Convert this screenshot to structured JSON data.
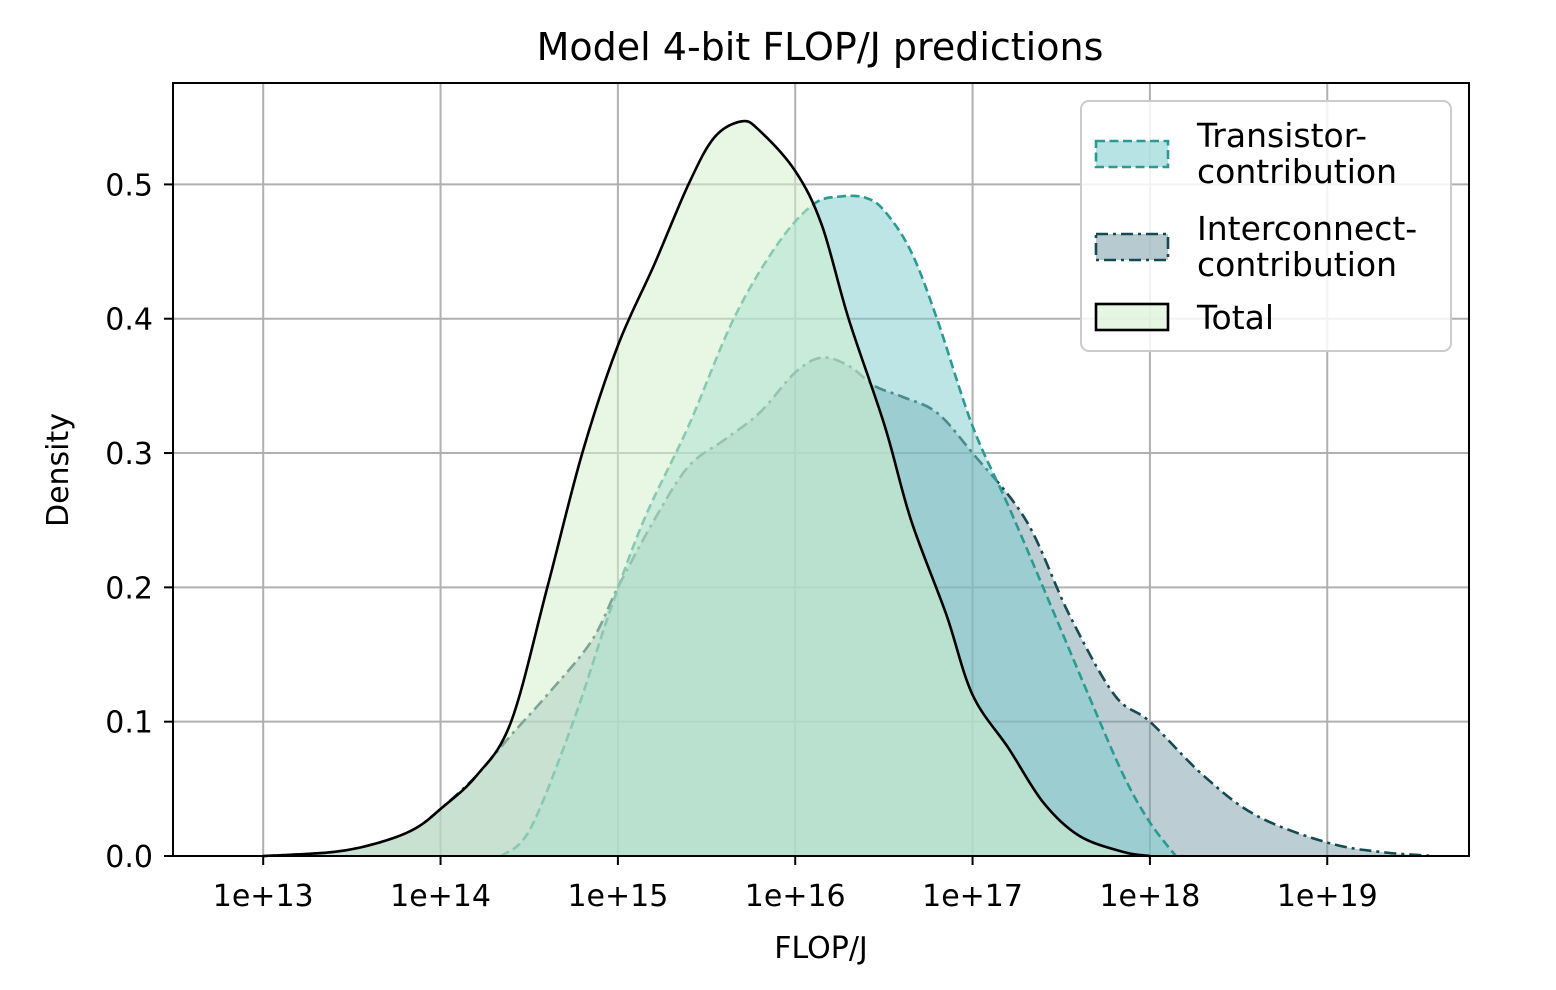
{
  "chart_data": {
    "type": "area",
    "title": "Model 4-bit FLOP/J predictions",
    "xlabel": "FLOP/J",
    "ylabel": "Density",
    "x_scale": "log10",
    "xlim": [
      3100000000000.0,
      6.3e+19
    ],
    "ylim": [
      0,
      0.5755
    ],
    "x_ticks": [
      10000000000000.0,
      100000000000000.0,
      1000000000000000.0,
      1e+16,
      1e+17,
      1e+18,
      1e+19
    ],
    "x_tick_labels": [
      "1e+13",
      "1e+14",
      "1e+15",
      "1e+16",
      "1e+17",
      "1e+18",
      "1e+19"
    ],
    "y_ticks": [
      0.0,
      0.1,
      0.2,
      0.3,
      0.4,
      0.5
    ],
    "y_tick_labels": [
      "0.0",
      "0.1",
      "0.2",
      "0.3",
      "0.4",
      "0.5"
    ],
    "grid": true,
    "legend_position": "top-right",
    "series": [
      {
        "name": "Transistor-\ncontribution",
        "line_style": "dashed",
        "line_color": "#2a9a92",
        "fill_color": "#7ccccd",
        "fill_opacity": 0.5,
        "points": [
          [
            220000000000000.0,
            0.0
          ],
          [
            320000000000000.0,
            0.02
          ],
          [
            560000000000000.0,
            0.1
          ],
          [
            890000000000000.0,
            0.18
          ],
          [
            1400000000000000.0,
            0.25
          ],
          [
            2500000000000000.0,
            0.32
          ],
          [
            4500000000000000.0,
            0.4
          ],
          [
            7900000000000000.0,
            0.455
          ],
          [
            1.26e+16,
            0.485
          ],
          [
            1.8e+16,
            0.491
          ],
          [
            2.5e+16,
            0.49
          ],
          [
            3.2e+16,
            0.48
          ],
          [
            4.5e+16,
            0.45
          ],
          [
            6.3e+16,
            0.4
          ],
          [
            1e+17,
            0.32
          ],
          [
            1.6e+17,
            0.26
          ],
          [
            2.5e+17,
            0.2
          ],
          [
            4.5e+17,
            0.12
          ],
          [
            7.1e+17,
            0.06
          ],
          [
            1e+18,
            0.025
          ],
          [
            1.4e+18,
            0.0
          ]
        ]
      },
      {
        "name": "Interconnect-\ncontribution",
        "line_style": "dashdot",
        "line_color": "#164a52",
        "fill_color": "#7a9ea8",
        "fill_opacity": 0.5,
        "points": [
          [
            10000000000000.0,
            0.0
          ],
          [
            25000000000000.0,
            0.003
          ],
          [
            45000000000000.0,
            0.01
          ],
          [
            71000000000000.0,
            0.02
          ],
          [
            100000000000000.0,
            0.035
          ],
          [
            160000000000000.0,
            0.06
          ],
          [
            250000000000000.0,
            0.09
          ],
          [
            400000000000000.0,
            0.12
          ],
          [
            710000000000000.0,
            0.16
          ],
          [
            1000000000000000.0,
            0.2
          ],
          [
            1600000000000000.0,
            0.25
          ],
          [
            2500000000000000.0,
            0.29
          ],
          [
            4000000000000000.0,
            0.31
          ],
          [
            6300000000000000.0,
            0.33
          ],
          [
            1e+16,
            0.36
          ],
          [
            1.41e+16,
            0.371
          ],
          [
            2e+16,
            0.365
          ],
          [
            2.8e+16,
            0.35
          ],
          [
            4e+16,
            0.342
          ],
          [
            6.3e+16,
            0.33
          ],
          [
            1e+17,
            0.3
          ],
          [
            2e+17,
            0.25
          ],
          [
            3.5e+17,
            0.18
          ],
          [
            6.3e+17,
            0.12
          ],
          [
            1e+18,
            0.1
          ],
          [
            2e+18,
            0.06
          ],
          [
            4e+18,
            0.03
          ],
          [
            1e+19,
            0.01
          ],
          [
            2e+19,
            0.003
          ],
          [
            4e+19,
            0.0
          ]
        ]
      },
      {
        "name": "Total",
        "line_style": "solid",
        "line_color": "#000000",
        "fill_color": "#d4f0ce",
        "fill_opacity": 0.55,
        "points": [
          [
            10000000000000.0,
            0.0
          ],
          [
            25000000000000.0,
            0.003
          ],
          [
            45000000000000.0,
            0.01
          ],
          [
            71000000000000.0,
            0.02
          ],
          [
            100000000000000.0,
            0.035
          ],
          [
            160000000000000.0,
            0.06
          ],
          [
            250000000000000.0,
            0.1
          ],
          [
            400000000000000.0,
            0.2
          ],
          [
            630000000000000.0,
            0.3
          ],
          [
            1000000000000000.0,
            0.38
          ],
          [
            1600000000000000.0,
            0.44
          ],
          [
            2500000000000000.0,
            0.5
          ],
          [
            3500000000000000.0,
            0.535
          ],
          [
            5000000000000000.0,
            0.547
          ],
          [
            6300000000000000.0,
            0.54
          ],
          [
            1e+16,
            0.51
          ],
          [
            1.41e+16,
            0.47
          ],
          [
            2e+16,
            0.4
          ],
          [
            3.2e+16,
            0.32
          ],
          [
            4.5e+16,
            0.25
          ],
          [
            7.1e+16,
            0.18
          ],
          [
            1e+17,
            0.12
          ],
          [
            1.6e+17,
            0.08
          ],
          [
            2.5e+17,
            0.04
          ],
          [
            4e+17,
            0.015
          ],
          [
            7.1e+17,
            0.003
          ],
          [
            1e+18,
            0.0
          ]
        ]
      }
    ]
  }
}
